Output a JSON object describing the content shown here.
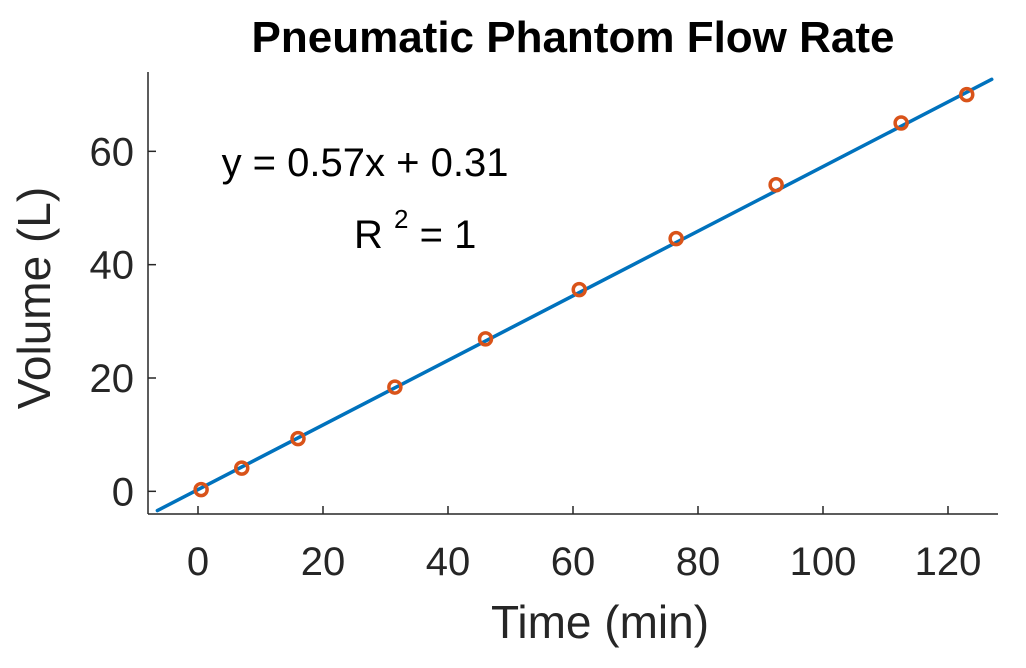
{
  "chart_data": {
    "type": "scatter",
    "title": "Pneumatic Phantom Flow Rate",
    "xlabel": "Time (min)",
    "ylabel": "Volume (L)",
    "xlim": [
      -8,
      128
    ],
    "ylim": [
      -4,
      74
    ],
    "xticks": [
      0,
      20,
      40,
      60,
      80,
      100,
      120
    ],
    "yticks": [
      0,
      20,
      40,
      60
    ],
    "grid": false,
    "series": [
      {
        "type": "scatter",
        "color": "#D95319",
        "marker": "circle-open",
        "x": [
          0.5,
          7,
          16,
          31.5,
          46,
          61,
          76.5,
          92.5,
          112.5,
          123
        ],
        "y": [
          0.3,
          4.1,
          9.3,
          18.4,
          26.9,
          35.6,
          44.6,
          54.1,
          65,
          70
        ]
      },
      {
        "type": "line",
        "color": "#0072BD",
        "slope": 0.57,
        "intercept": 0.31,
        "x_range": [
          -6.5,
          127
        ]
      }
    ],
    "annotations": {
      "equation": "y = 0.57x + 0.31",
      "r_squared_base": "R",
      "r_squared_exp": "2",
      "r_squared_value": " = 1"
    }
  }
}
